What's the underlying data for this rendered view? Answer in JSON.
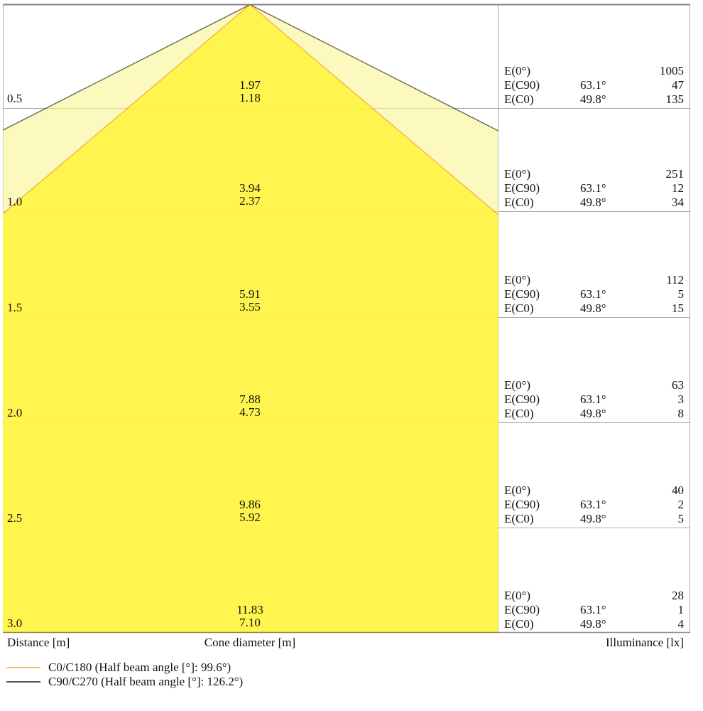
{
  "axis": {
    "distance_label": "Distance [m]",
    "cone_diameter_label": "Cone diameter [m]",
    "illuminance_label": "Illuminance [lx]"
  },
  "legend": [
    {
      "label": "C0/C180 (Half beam angle [°]: 99.6°)",
      "color": "#F5BC82"
    },
    {
      "label": "C90/C270 (Half beam angle [°]: 126.2°)",
      "color": "#54585C"
    }
  ],
  "colors": {
    "cone_inner_fill": "rgba(255,244,50,0.80)",
    "cone_outer_fill": "rgba(250,246,150,0.62)",
    "grid": "#ABABAB",
    "frame": "#808080",
    "text": "#111111"
  },
  "rows": [
    {
      "distance": "0.5",
      "diameter_c90": "1.97",
      "diameter_c0": "1.18",
      "e0_label": "E(0°)",
      "e0_angle": "",
      "e0_value": "1005",
      "ec90_label": "E(C90)",
      "ec90_angle": "63.1°",
      "ec90_value": "47",
      "ec0_label": "E(C0)",
      "ec0_angle": "49.8°",
      "ec0_value": "135"
    },
    {
      "distance": "1.0",
      "diameter_c90": "3.94",
      "diameter_c0": "2.37",
      "e0_label": "E(0°)",
      "e0_angle": "",
      "e0_value": "251",
      "ec90_label": "E(C90)",
      "ec90_angle": "63.1°",
      "ec90_value": "12",
      "ec0_label": "E(C0)",
      "ec0_angle": "49.8°",
      "ec0_value": "34"
    },
    {
      "distance": "1.5",
      "diameter_c90": "5.91",
      "diameter_c0": "3.55",
      "e0_label": "E(0°)",
      "e0_angle": "",
      "e0_value": "112",
      "ec90_label": "E(C90)",
      "ec90_angle": "63.1°",
      "ec90_value": "5",
      "ec0_label": "E(C0)",
      "ec0_angle": "49.8°",
      "ec0_value": "15"
    },
    {
      "distance": "2.0",
      "diameter_c90": "7.88",
      "diameter_c0": "4.73",
      "e0_label": "E(0°)",
      "e0_angle": "",
      "e0_value": "63",
      "ec90_label": "E(C90)",
      "ec90_angle": "63.1°",
      "ec90_value": "3",
      "ec0_label": "E(C0)",
      "ec0_angle": "49.8°",
      "ec0_value": "8"
    },
    {
      "distance": "2.5",
      "diameter_c90": "9.86",
      "diameter_c0": "5.92",
      "e0_label": "E(0°)",
      "e0_angle": "",
      "e0_value": "40",
      "ec90_label": "E(C90)",
      "ec90_angle": "63.1°",
      "ec90_value": "2",
      "ec0_label": "E(C0)",
      "ec0_angle": "49.8°",
      "ec0_value": "5"
    },
    {
      "distance": "3.0",
      "diameter_c90": "11.83",
      "diameter_c0": "7.10",
      "e0_label": "E(0°)",
      "e0_angle": "",
      "e0_value": "28",
      "ec90_label": "E(C90)",
      "ec90_angle": "63.1°",
      "ec90_value": "1",
      "ec0_label": "E(C0)",
      "ec0_angle": "49.8°",
      "ec0_value": "4"
    }
  ],
  "chart_data": {
    "type": "area",
    "title": "Photometric cone diagram with illuminance table",
    "xlabel": "Distance [m]",
    "value_labels": [
      "Cone diameter [m]",
      "Illuminance [lx]"
    ],
    "distances_m": [
      0.5,
      1.0,
      1.5,
      2.0,
      2.5,
      3.0
    ],
    "series": [
      {
        "name": "C0/C180",
        "half_beam_angle_deg": 99.6,
        "half_angle_deg": 49.8,
        "cone_diameter_m": [
          1.18,
          2.37,
          3.55,
          4.73,
          5.92,
          7.1
        ],
        "illuminance_lx": [
          135,
          34,
          15,
          8,
          5,
          4
        ],
        "color": "#F5BC82"
      },
      {
        "name": "C90/C270",
        "half_beam_angle_deg": 126.2,
        "half_angle_deg": 63.1,
        "cone_diameter_m": [
          1.97,
          3.94,
          5.91,
          7.88,
          9.86,
          11.83
        ],
        "illuminance_lx": [
          47,
          12,
          5,
          3,
          2,
          1
        ],
        "color": "#54585C"
      }
    ],
    "e0_lx": [
      1005,
      251,
      112,
      63,
      40,
      28
    ],
    "legend_position": "bottom-left",
    "grid": true
  }
}
